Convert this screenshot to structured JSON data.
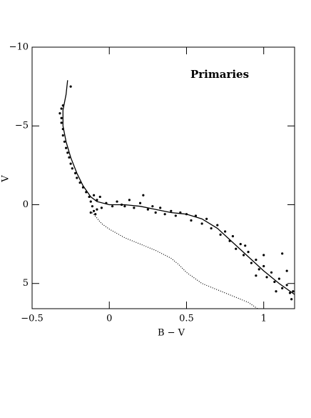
{
  "chart_data": {
    "type": "scatter",
    "title": "Primaries",
    "xlabel": "B − V",
    "ylabel": "V",
    "xlim": [
      -0.5,
      1.2
    ],
    "ylim": [
      -10,
      6.6
    ],
    "yinverted": true,
    "xticks": [
      {
        "value": -0.5,
        "label": "−0.5"
      },
      0,
      0.5,
      1
    ],
    "yticks": [
      {
        "value": -10,
        "label": "−10"
      },
      {
        "value": -5,
        "label": "−5"
      },
      0,
      5
    ],
    "series": [
      {
        "style": "points",
        "color": "#000",
        "x": [
          -0.25,
          -0.3,
          -0.31,
          -0.32,
          -0.31,
          -0.31,
          -0.3,
          -0.3,
          -0.29,
          -0.28,
          -0.27,
          -0.26,
          -0.25,
          -0.24,
          -0.22,
          -0.21,
          -0.19,
          -0.17,
          -0.15,
          -0.13,
          -0.12,
          -0.11,
          -0.1,
          -0.09,
          -0.08,
          -0.1,
          -0.08,
          -0.06,
          -0.05,
          -0.12,
          -0.02,
          0.02,
          0.05,
          0.08,
          0.1,
          0.13,
          0.16,
          0.2,
          0.22,
          0.25,
          0.28,
          0.3,
          0.33,
          0.36,
          0.4,
          0.43,
          0.46,
          0.5,
          0.53,
          0.56,
          0.6,
          0.63,
          0.66,
          0.7,
          0.72,
          0.75,
          0.78,
          0.8,
          0.82,
          0.85,
          0.87,
          0.9,
          0.92,
          0.95,
          0.97,
          1.0,
          1.02,
          1.05,
          1.07,
          1.1,
          1.12,
          1.15,
          1.17,
          1.19,
          1.0,
          1.12,
          1.15,
          0.95,
          1.08,
          0.88,
          1.18
        ],
        "values": [
          -7.5,
          -6.3,
          -6.1,
          -5.8,
          -5.5,
          -5.2,
          -4.8,
          -4.4,
          -4.0,
          -3.6,
          -3.3,
          -3.0,
          -2.6,
          -2.3,
          -2.0,
          -1.7,
          -1.4,
          -1.1,
          -0.8,
          -0.5,
          -0.2,
          0.1,
          0.4,
          0.6,
          0.3,
          -0.6,
          -0.3,
          -0.5,
          0.2,
          0.5,
          -0.1,
          0.1,
          -0.2,
          0.0,
          0.1,
          -0.3,
          0.2,
          -0.1,
          -0.6,
          0.3,
          0.1,
          0.5,
          0.2,
          0.6,
          0.4,
          0.7,
          0.5,
          0.6,
          1.0,
          0.7,
          1.2,
          0.9,
          1.5,
          1.3,
          1.9,
          1.7,
          2.3,
          2.0,
          2.8,
          2.5,
          3.2,
          3.0,
          3.7,
          3.5,
          4.1,
          3.9,
          4.6,
          4.3,
          4.9,
          4.7,
          5.3,
          5.1,
          5.6,
          5.5,
          3.2,
          3.1,
          4.2,
          4.5,
          5.5,
          2.6,
          6.0
        ]
      },
      {
        "style": "line",
        "color": "#000",
        "x": [
          -0.27,
          -0.28,
          -0.3,
          -0.3,
          -0.28,
          -0.25,
          -0.21,
          -0.17,
          -0.12,
          -0.08,
          0,
          0.1,
          0.2,
          0.3,
          0.4,
          0.5,
          0.6,
          0.7,
          0.8,
          0.9,
          1.0,
          1.1,
          1.2
        ],
        "values": [
          -7.9,
          -7,
          -6,
          -5,
          -4,
          -3,
          -2,
          -1.2,
          -0.5,
          -0.2,
          0,
          0,
          0.1,
          0.3,
          0.5,
          0.6,
          0.9,
          1.5,
          2.4,
          3.3,
          4.2,
          5.0,
          5.7
        ]
      },
      {
        "style": "dotted",
        "color": "#000",
        "x": [
          -0.11,
          -0.05,
          0,
          0.1,
          0.2,
          0.3,
          0.4,
          0.45,
          0.5,
          0.6,
          0.7,
          0.8,
          0.9,
          0.96
        ],
        "values": [
          0.5,
          1.2,
          1.55,
          2.1,
          2.5,
          2.9,
          3.4,
          3.8,
          4.3,
          5.0,
          5.4,
          5.8,
          6.2,
          6.6
        ]
      }
    ]
  }
}
